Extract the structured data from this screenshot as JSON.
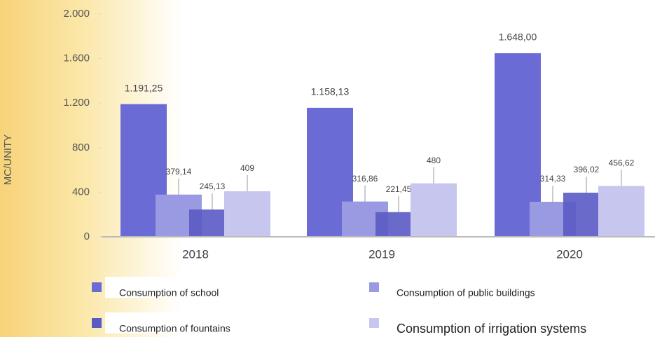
{
  "chart_data": {
    "type": "bar",
    "y_label": "MC/UNITY",
    "categories": [
      "2018",
      "2019",
      "2020"
    ],
    "series": [
      {
        "name": "Consumption of school",
        "color": "#6b6bd6",
        "values": [
          1191.25,
          1158.13,
          1648.0
        ],
        "value_labels": [
          "1.191,25",
          "1.158,13",
          "1.648,00"
        ]
      },
      {
        "name": "Consumption of public buildings",
        "color": "#9a9ae2",
        "values": [
          379.14,
          316.86,
          314.33
        ],
        "value_labels": [
          "379,14",
          "316,86",
          "314,33"
        ]
      },
      {
        "name": "Consumption of fountains",
        "color": "#5a5ac4",
        "values": [
          245.13,
          221.45,
          396.02
        ],
        "value_labels": [
          "245,13",
          "221,45",
          "396,02"
        ]
      },
      {
        "name": "Consumption of irrigation systems",
        "color": "#c6c6ee",
        "values": [
          409,
          480,
          456.62
        ],
        "value_labels": [
          "409",
          "480",
          "456,62"
        ]
      }
    ],
    "ylim": [
      0,
      2000
    ],
    "yticks": [
      0,
      400,
      {
        "value": 800,
        "label": "800"
      },
      {
        "value": 1200,
        "label": "1.200"
      },
      {
        "value": 1600,
        "label": "1.600"
      },
      {
        "value": 2000,
        "label": "2.000"
      }
    ],
    "legend": "bottom"
  }
}
